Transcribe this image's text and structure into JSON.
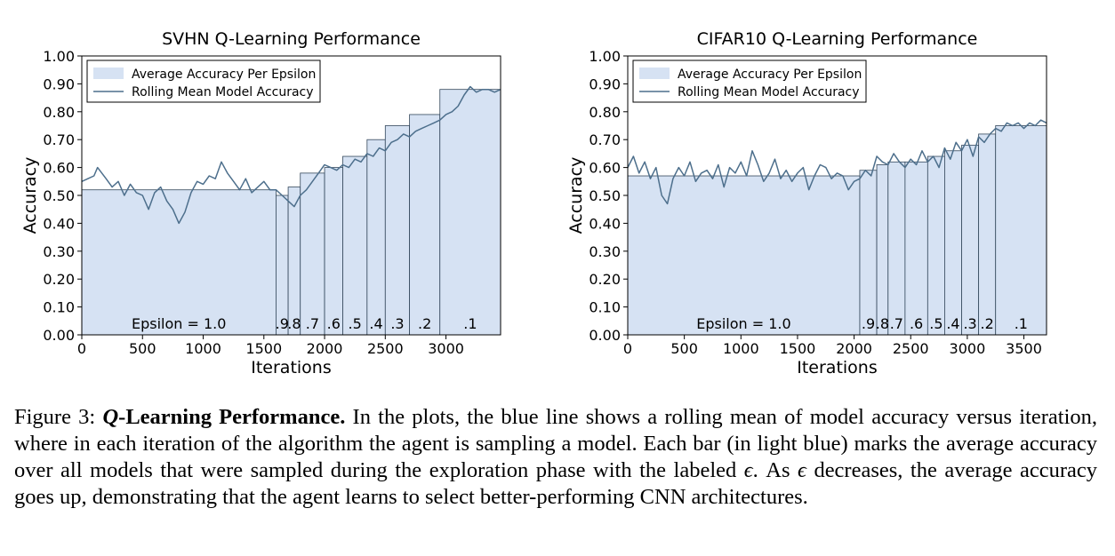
{
  "colors": {
    "bar_fill": "#d6e2f3",
    "bar_edge": "#33475b",
    "line": "#4d6f8c"
  },
  "caption": {
    "figure_label": "Figure 3:",
    "title_symbol": "Q",
    "title_rest": "-Learning Performance.",
    "text_a": "In the plots, the blue line shows a rolling mean of model accuracy versus iteration, where in each iteration of the algorithm the agent is sampling a model. Each bar (in light blue) marks the average accuracy over all models that were sampled during the exploration phase with the labeled",
    "symbol": "ϵ",
    "text_b": ". As",
    "text_c": "decreases, the average accuracy goes up, demonstrating that the agent learns to select better-performing CNN architectures."
  },
  "chart_data": [
    {
      "type": "bar",
      "title": "SVHN Q-Learning Performance",
      "xlabel": "Iterations",
      "ylabel": "Accuracy",
      "xlim": [
        0,
        3450
      ],
      "ylim": [
        0,
        1.0
      ],
      "xticks": [
        0,
        500,
        1000,
        1500,
        2000,
        2500,
        3000
      ],
      "yticks": [
        "0.00",
        "0.10",
        "0.20",
        "0.30",
        "0.40",
        "0.50",
        "0.60",
        "0.70",
        "0.80",
        "0.90",
        "1.00"
      ],
      "legend": {
        "placement": "top-left",
        "entries": [
          "Average Accuracy Per Epsilon",
          "Rolling Mean Model Accuracy"
        ]
      },
      "bars": [
        {
          "label": "Epsilon = 1.0",
          "x_start": 0,
          "x_end": 1600,
          "value": 0.52
        },
        {
          "label": ".9",
          "x_start": 1600,
          "x_end": 1700,
          "value": 0.5
        },
        {
          "label": ".8",
          "x_start": 1700,
          "x_end": 1800,
          "value": 0.53
        },
        {
          "label": ".7",
          "x_start": 1800,
          "x_end": 2000,
          "value": 0.58
        },
        {
          "label": ".6",
          "x_start": 2000,
          "x_end": 2150,
          "value": 0.6
        },
        {
          "label": ".5",
          "x_start": 2150,
          "x_end": 2350,
          "value": 0.64
        },
        {
          "label": ".4",
          "x_start": 2350,
          "x_end": 2500,
          "value": 0.7
        },
        {
          "label": ".3",
          "x_start": 2500,
          "x_end": 2700,
          "value": 0.75
        },
        {
          "label": ".2",
          "x_start": 2700,
          "x_end": 2950,
          "value": 0.79
        },
        {
          "label": ".1",
          "x_start": 2950,
          "x_end": 3450,
          "value": 0.88
        }
      ],
      "rolling_mean": {
        "x": [
          0,
          50,
          100,
          130,
          200,
          250,
          300,
          350,
          400,
          450,
          500,
          550,
          600,
          650,
          700,
          750,
          800,
          850,
          900,
          950,
          1000,
          1050,
          1100,
          1150,
          1200,
          1250,
          1300,
          1350,
          1400,
          1450,
          1500,
          1550,
          1600,
          1650,
          1700,
          1750,
          1800,
          1850,
          1900,
          1950,
          2000,
          2050,
          2100,
          2150,
          2200,
          2250,
          2300,
          2350,
          2400,
          2450,
          2500,
          2550,
          2600,
          2650,
          2700,
          2750,
          2800,
          2850,
          2900,
          2950,
          3000,
          3050,
          3100,
          3150,
          3200,
          3250,
          3300,
          3350,
          3400,
          3450
        ],
        "y": [
          0.55,
          0.56,
          0.57,
          0.6,
          0.56,
          0.53,
          0.55,
          0.5,
          0.54,
          0.51,
          0.5,
          0.45,
          0.51,
          0.53,
          0.48,
          0.45,
          0.4,
          0.44,
          0.51,
          0.55,
          0.54,
          0.57,
          0.56,
          0.62,
          0.58,
          0.55,
          0.52,
          0.56,
          0.51,
          0.53,
          0.55,
          0.52,
          0.52,
          0.5,
          0.48,
          0.46,
          0.5,
          0.52,
          0.55,
          0.58,
          0.61,
          0.6,
          0.59,
          0.61,
          0.6,
          0.63,
          0.62,
          0.65,
          0.64,
          0.67,
          0.66,
          0.69,
          0.7,
          0.72,
          0.71,
          0.73,
          0.74,
          0.75,
          0.76,
          0.77,
          0.79,
          0.8,
          0.82,
          0.86,
          0.89,
          0.87,
          0.88,
          0.88,
          0.87,
          0.88
        ]
      }
    },
    {
      "type": "bar",
      "title": "CIFAR10 Q-Learning Performance",
      "xlabel": "Iterations",
      "ylabel": "Accuracy",
      "xlim": [
        0,
        3700
      ],
      "ylim": [
        0,
        1.0
      ],
      "xticks": [
        0,
        500,
        1000,
        1500,
        2000,
        2500,
        3000,
        3500
      ],
      "yticks": [
        "0.00",
        "0.10",
        "0.20",
        "0.30",
        "0.40",
        "0.50",
        "0.60",
        "0.70",
        "0.80",
        "0.90",
        "1.00"
      ],
      "legend": {
        "placement": "top-left",
        "entries": [
          "Average Accuracy Per Epsilon",
          "Rolling Mean Model Accuracy"
        ]
      },
      "bars": [
        {
          "label": "Epsilon = 1.0",
          "x_start": 0,
          "x_end": 2050,
          "value": 0.57
        },
        {
          "label": ".9",
          "x_start": 2050,
          "x_end": 2200,
          "value": 0.59
        },
        {
          "label": ".8",
          "x_start": 2200,
          "x_end": 2300,
          "value": 0.61
        },
        {
          "label": ".7",
          "x_start": 2300,
          "x_end": 2450,
          "value": 0.62
        },
        {
          "label": ".6",
          "x_start": 2450,
          "x_end": 2650,
          "value": 0.62
        },
        {
          "label": ".5",
          "x_start": 2650,
          "x_end": 2800,
          "value": 0.64
        },
        {
          "label": ".4",
          "x_start": 2800,
          "x_end": 2950,
          "value": 0.66
        },
        {
          "label": ".3",
          "x_start": 2950,
          "x_end": 3100,
          "value": 0.68
        },
        {
          "label": ".2",
          "x_start": 3100,
          "x_end": 3250,
          "value": 0.72
        },
        {
          "label": ".1",
          "x_start": 3250,
          "x_end": 3700,
          "value": 0.75
        }
      ],
      "rolling_mean": {
        "x": [
          0,
          50,
          100,
          150,
          200,
          250,
          300,
          350,
          400,
          450,
          500,
          550,
          600,
          650,
          700,
          750,
          800,
          850,
          900,
          950,
          1000,
          1050,
          1100,
          1150,
          1200,
          1250,
          1300,
          1350,
          1400,
          1450,
          1500,
          1550,
          1600,
          1650,
          1700,
          1750,
          1800,
          1850,
          1900,
          1950,
          2000,
          2050,
          2100,
          2150,
          2200,
          2250,
          2300,
          2350,
          2400,
          2450,
          2500,
          2550,
          2600,
          2650,
          2700,
          2750,
          2800,
          2850,
          2900,
          2950,
          3000,
          3050,
          3100,
          3150,
          3200,
          3250,
          3300,
          3350,
          3400,
          3450,
          3500,
          3550,
          3600,
          3650,
          3700
        ],
        "y": [
          0.6,
          0.64,
          0.58,
          0.62,
          0.56,
          0.6,
          0.5,
          0.47,
          0.56,
          0.6,
          0.57,
          0.62,
          0.55,
          0.58,
          0.59,
          0.56,
          0.61,
          0.53,
          0.6,
          0.58,
          0.62,
          0.57,
          0.66,
          0.61,
          0.55,
          0.58,
          0.63,
          0.56,
          0.59,
          0.55,
          0.58,
          0.6,
          0.52,
          0.57,
          0.61,
          0.6,
          0.56,
          0.58,
          0.57,
          0.52,
          0.55,
          0.56,
          0.59,
          0.57,
          0.64,
          0.62,
          0.61,
          0.65,
          0.62,
          0.6,
          0.63,
          0.61,
          0.66,
          0.62,
          0.64,
          0.6,
          0.67,
          0.63,
          0.69,
          0.66,
          0.7,
          0.64,
          0.71,
          0.69,
          0.72,
          0.74,
          0.73,
          0.76,
          0.75,
          0.76,
          0.74,
          0.76,
          0.75,
          0.77,
          0.76
        ]
      }
    }
  ]
}
